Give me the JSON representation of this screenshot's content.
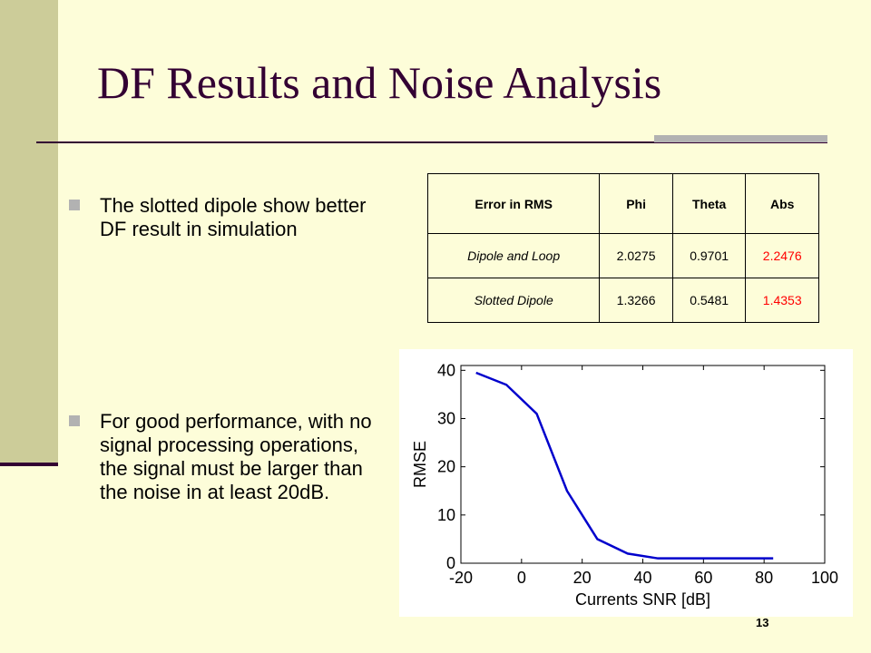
{
  "slide": {
    "title": "DF Results and Noise Analysis",
    "page_number": "13"
  },
  "bullets": [
    {
      "text": "The slotted dipole show better DF result in simulation"
    },
    {
      "text": "For good performance, with no signal processing operations, the signal must be larger than the noise in at least 20dB."
    }
  ],
  "table": {
    "headers": [
      "Error in RMS",
      "Phi",
      "Theta",
      "Abs"
    ],
    "rows": [
      {
        "name": "Dipole and Loop",
        "phi": "2.0275",
        "theta": "0.9701",
        "abs": "2.2476"
      },
      {
        "name": "Slotted Dipole",
        "phi": "1.3266",
        "theta": "0.5481",
        "abs": "1.4353"
      }
    ],
    "highlight_color": "#ff0000"
  },
  "chart_data": {
    "type": "line",
    "xlabel": "Currents SNR [dB]",
    "ylabel": "RMSE",
    "xlim": [
      -20,
      100
    ],
    "ylim": [
      0,
      41
    ],
    "xticks": [
      -20,
      0,
      20,
      40,
      60,
      80,
      100
    ],
    "yticks": [
      0,
      10,
      20,
      30,
      40
    ],
    "grid": false,
    "series": [
      {
        "color": "#0000cc",
        "x": [
          -15,
          -5,
          5,
          15,
          25,
          35,
          45,
          55,
          65,
          75,
          83
        ],
        "y": [
          39.5,
          37,
          31,
          15,
          5,
          2,
          1,
          1,
          1,
          1,
          1
        ]
      }
    ]
  }
}
